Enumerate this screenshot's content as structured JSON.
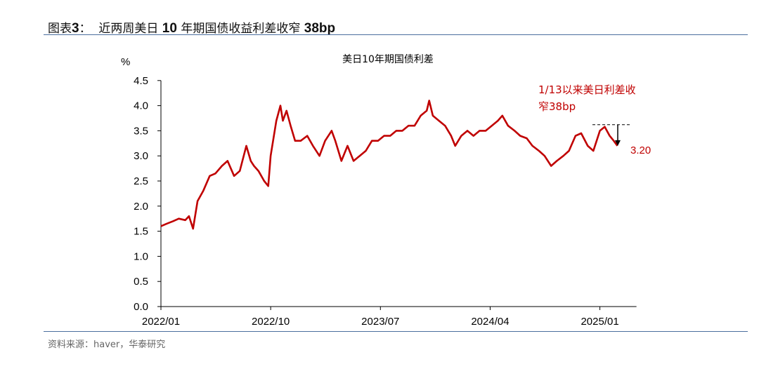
{
  "header": {
    "prefix": "图表",
    "num": "3",
    "colon": "：",
    "title_a": "近两周美日 ",
    "title_b": "10",
    "title_c": " 年期国债收益利差收窄 ",
    "title_d": "38bp"
  },
  "source": "资料来源：haver，华泰研究",
  "colors": {
    "line": "#C00000",
    "rule": "#4A6E9E",
    "annotation": "#C00000"
  },
  "chart_data": {
    "type": "line",
    "title": "美日10年期国债利差",
    "ylabel": "%",
    "ylim": [
      0,
      4.5
    ],
    "yticks": [
      "0.0",
      "0.5",
      "1.0",
      "1.5",
      "2.0",
      "2.5",
      "3.0",
      "3.5",
      "4.0",
      "4.5"
    ],
    "xlim": [
      "2022-01",
      "2025-04"
    ],
    "xticks": [
      "2022/01",
      "2022/10",
      "2023/07",
      "2024/04",
      "2025/01"
    ],
    "grid": false,
    "series": [
      {
        "x": [
          "2022-01-01",
          "2022-01-15",
          "2022-02-01",
          "2022-02-15",
          "2022-03-01",
          "2022-03-10",
          "2022-03-20",
          "2022-04-01",
          "2022-04-15",
          "2022-05-01",
          "2022-05-15",
          "2022-06-01",
          "2022-06-15",
          "2022-07-01",
          "2022-07-15",
          "2022-08-01",
          "2022-08-12",
          "2022-08-20",
          "2022-09-01",
          "2022-09-15",
          "2022-09-25",
          "2022-10-01",
          "2022-10-15",
          "2022-10-25",
          "2022-11-01",
          "2022-11-10",
          "2022-11-20",
          "2022-12-01",
          "2022-12-15",
          "2023-01-01",
          "2023-01-15",
          "2023-02-01",
          "2023-02-15",
          "2023-03-01",
          "2023-03-10",
          "2023-03-25",
          "2023-04-10",
          "2023-04-25",
          "2023-05-10",
          "2023-05-25",
          "2023-06-10",
          "2023-06-25",
          "2023-07-10",
          "2023-07-25",
          "2023-08-10",
          "2023-08-25",
          "2023-09-10",
          "2023-09-25",
          "2023-10-10",
          "2023-10-25",
          "2023-11-01",
          "2023-11-10",
          "2023-11-25",
          "2023-12-10",
          "2023-12-25",
          "2024-01-05",
          "2024-01-20",
          "2024-02-05",
          "2024-02-20",
          "2024-03-05",
          "2024-03-20",
          "2024-04-05",
          "2024-04-20",
          "2024-05-01",
          "2024-05-15",
          "2024-06-01",
          "2024-06-15",
          "2024-07-01",
          "2024-07-15",
          "2024-08-01",
          "2024-08-15",
          "2024-09-01",
          "2024-09-15",
          "2024-10-01",
          "2024-10-15",
          "2024-11-01",
          "2024-11-15",
          "2024-12-01",
          "2024-12-15",
          "2025-01-01",
          "2025-01-13",
          "2025-01-25",
          "2025-02-05",
          "2025-02-14"
        ],
        "values": [
          1.6,
          1.65,
          1.7,
          1.75,
          1.72,
          1.8,
          1.55,
          2.1,
          2.3,
          2.6,
          2.65,
          2.8,
          2.9,
          2.6,
          2.7,
          3.2,
          2.9,
          2.8,
          2.7,
          2.5,
          2.4,
          3.0,
          3.7,
          4.0,
          3.7,
          3.9,
          3.6,
          3.3,
          3.3,
          3.4,
          3.2,
          3.0,
          3.3,
          3.5,
          3.3,
          2.9,
          3.2,
          2.9,
          3.0,
          3.1,
          3.3,
          3.3,
          3.4,
          3.4,
          3.5,
          3.5,
          3.6,
          3.6,
          3.8,
          3.9,
          4.1,
          3.8,
          3.7,
          3.6,
          3.4,
          3.2,
          3.4,
          3.5,
          3.4,
          3.5,
          3.5,
          3.6,
          3.7,
          3.8,
          3.6,
          3.5,
          3.4,
          3.35,
          3.2,
          3.1,
          3.0,
          2.8,
          2.9,
          3.0,
          3.1,
          3.4,
          3.45,
          3.2,
          3.1,
          3.5,
          3.58,
          3.4,
          3.3,
          3.2
        ]
      }
    ],
    "annotations": {
      "text_line1": "1/13以来美日利差收",
      "text_line2": "窄38bp",
      "last_value_label": "3.20",
      "reference_level": 3.62,
      "arrow_from": 3.62,
      "arrow_to": 3.2
    }
  }
}
